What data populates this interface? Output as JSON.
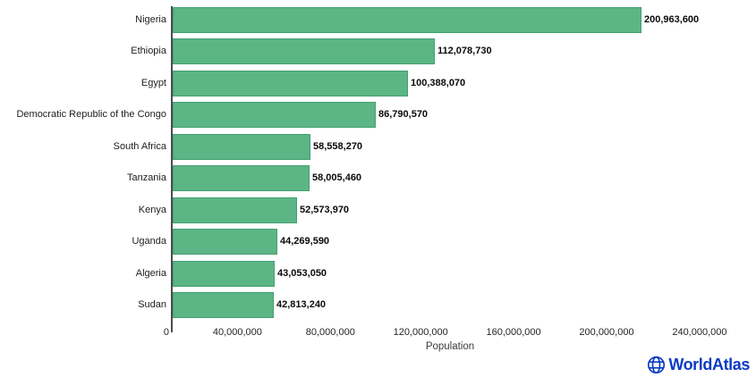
{
  "chart_data": {
    "type": "bar",
    "orientation": "horizontal",
    "title": "",
    "categories": [
      "Nigeria",
      "Ethiopia",
      "Egypt",
      "Democratic Republic of the Congo",
      "South Africa",
      "Tanzania",
      "Kenya",
      "Uganda",
      "Algeria",
      "Sudan"
    ],
    "values": [
      200963600,
      112078730,
      100388070,
      86790570,
      58558270,
      58005460,
      52573970,
      44269590,
      43053050,
      42813240
    ],
    "value_labels": [
      "200,963,600",
      "112,078,730",
      "100,388,070",
      "86,790,570",
      "58,558,270",
      "58,005,460",
      "52,573,970",
      "44,269,590",
      "43,053,050",
      "42,813,240"
    ],
    "xlabel": "Population",
    "ylabel": "",
    "xlim": [
      0,
      252000000
    ],
    "ticks": [
      0,
      40000000,
      80000000,
      120000000,
      160000000,
      200000000,
      240000000
    ],
    "tick_labels": [
      "0",
      "40,000,000",
      "80,000,000",
      "120,000,000",
      "160,000,000",
      "200,000,000",
      "240,000,000"
    ],
    "grid": false,
    "legend": false,
    "bar_color": "#5cb585",
    "bar_border_color": "#41a071",
    "axis_color": "#4d4d4d"
  },
  "branding": {
    "name": "WorldAtlas",
    "icon": "globe-icon",
    "color": "#0b3bc3"
  }
}
